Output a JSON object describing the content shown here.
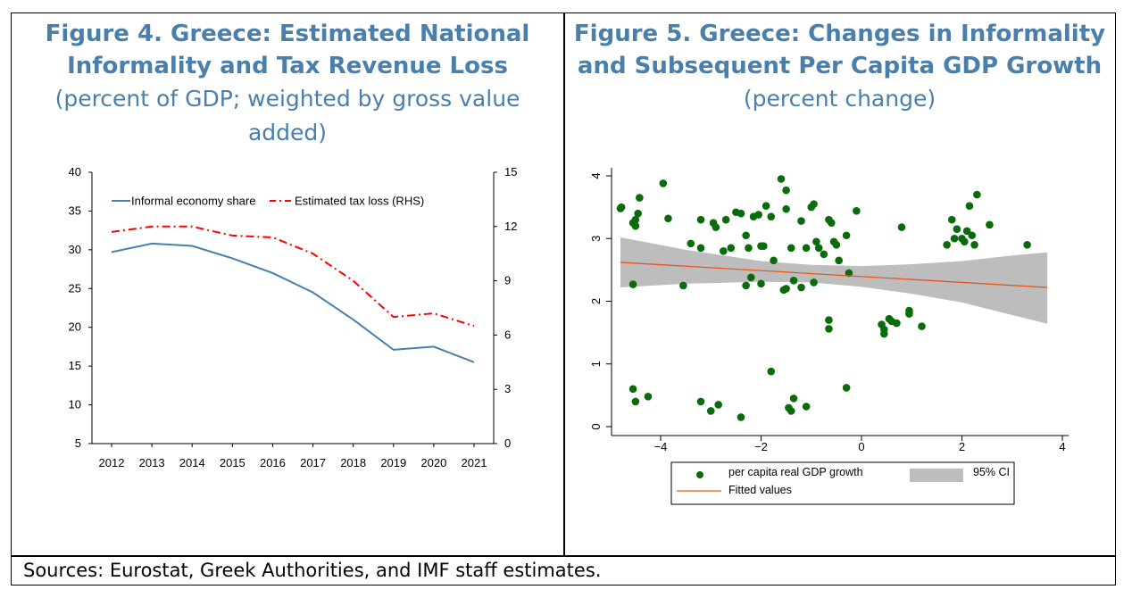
{
  "figure4": {
    "title": "Figure 4. Greece: Estimated National Informality and Tax Revenue Loss",
    "subtitle": "(percent of GDP; weighted by gross value added)"
  },
  "figure5": {
    "title": "Figure 5. Greece: Changes in Informality and Subsequent Per Capita GDP Growth",
    "subtitle": "(percent change)"
  },
  "sources": "Sources: Eurostat, Greek Authorities, and IMF staff estimates.",
  "colors": {
    "title": "#4a7fab",
    "informal": "#4a7fab",
    "taxloss": "#ff0000",
    "scatter": "#0a6b0a",
    "fit": "#e8561a",
    "ci": "#bdbdbd"
  },
  "chart_data": [
    {
      "type": "line",
      "categories": [
        "2012",
        "2013",
        "2014",
        "2015",
        "2016",
        "2017",
        "2018",
        "2019",
        "2020",
        "2021"
      ],
      "series": [
        {
          "name": "Informal economy share",
          "axis": "left",
          "style": "solid",
          "values": [
            29.7,
            30.8,
            30.5,
            28.9,
            27.0,
            24.5,
            21.0,
            17.1,
            17.5,
            15.5
          ]
        },
        {
          "name": "Estimated tax loss (RHS)",
          "axis": "right",
          "style": "dash-dot",
          "values": [
            11.7,
            12.0,
            12.0,
            11.5,
            11.4,
            10.5,
            9.0,
            7.0,
            7.2,
            6.5
          ]
        }
      ],
      "ylim_left": [
        5,
        40
      ],
      "yticks_left": [
        5,
        10,
        15,
        20,
        25,
        30,
        35,
        40
      ],
      "ylim_right": [
        0,
        15
      ],
      "yticks_right": [
        0,
        3,
        6,
        9,
        12,
        15
      ],
      "legend_position": "top-left",
      "grid": false
    },
    {
      "type": "scatter",
      "xlim": [
        -4.9,
        3.9
      ],
      "ylim": [
        -0.1,
        4.1
      ],
      "xticks": [
        -4,
        -2,
        0,
        2,
        4
      ],
      "yticks": [
        0,
        1,
        2,
        3,
        4
      ],
      "legend": [
        {
          "name": "per capita real GDP growth",
          "kind": "marker"
        },
        {
          "name": "95% CI",
          "kind": "band"
        },
        {
          "name": "Fitted values",
          "kind": "line"
        }
      ],
      "legend_position": "bottom",
      "grid": false,
      "fit": {
        "x": [
          -4.8,
          3.7
        ],
        "y": [
          2.62,
          2.22
        ]
      },
      "ci": {
        "x": [
          -4.8,
          -3.5,
          -2.0,
          -1.0,
          0.0,
          1.0,
          2.0,
          3.0,
          3.7
        ],
        "upper": [
          3.02,
          2.82,
          2.64,
          2.58,
          2.56,
          2.59,
          2.64,
          2.73,
          2.78
        ],
        "lower": [
          2.22,
          2.28,
          2.31,
          2.3,
          2.23,
          2.12,
          1.98,
          1.78,
          1.64
        ]
      },
      "points": [
        [
          -4.8,
          3.48
        ],
        [
          -4.78,
          3.5
        ],
        [
          -4.55,
          3.25
        ],
        [
          -4.5,
          3.3
        ],
        [
          -4.45,
          3.4
        ],
        [
          -4.42,
          3.65
        ],
        [
          -4.5,
          3.2
        ],
        [
          -3.95,
          3.88
        ],
        [
          -3.85,
          3.32
        ],
        [
          -4.55,
          2.27
        ],
        [
          -3.55,
          2.25
        ],
        [
          -3.4,
          2.92
        ],
        [
          -3.2,
          3.3
        ],
        [
          -2.95,
          3.25
        ],
        [
          -2.9,
          3.18
        ],
        [
          -2.75,
          2.8
        ],
        [
          -2.7,
          3.3
        ],
        [
          -2.5,
          3.42
        ],
        [
          -2.4,
          3.4
        ],
        [
          -2.3,
          3.05
        ],
        [
          -2.25,
          2.85
        ],
        [
          -2.15,
          3.35
        ],
        [
          -2.05,
          3.38
        ],
        [
          -2.0,
          2.88
        ],
        [
          -1.95,
          2.88
        ],
        [
          -1.9,
          3.52
        ],
        [
          -1.8,
          3.35
        ],
        [
          -2.0,
          2.28
        ],
        [
          -1.6,
          3.95
        ],
        [
          -1.5,
          3.77
        ],
        [
          -1.5,
          3.47
        ],
        [
          -1.4,
          2.85
        ],
        [
          -1.55,
          2.18
        ],
        [
          -1.5,
          2.2
        ],
        [
          -1.2,
          3.28
        ],
        [
          -1.1,
          2.85
        ],
        [
          -1.0,
          3.5
        ],
        [
          -0.95,
          3.55
        ],
        [
          -0.9,
          2.95
        ],
        [
          -0.85,
          2.85
        ],
        [
          -0.75,
          2.75
        ],
        [
          -0.65,
          3.3
        ],
        [
          -0.6,
          3.25
        ],
        [
          -0.55,
          2.95
        ],
        [
          -0.5,
          2.9
        ],
        [
          -0.45,
          2.65
        ],
        [
          -0.3,
          3.05
        ],
        [
          -0.1,
          3.44
        ],
        [
          -1.35,
          2.33
        ],
        [
          -1.2,
          2.22
        ],
        [
          -0.95,
          2.3
        ],
        [
          -2.3,
          2.25
        ],
        [
          -2.2,
          2.38
        ],
        [
          -0.65,
          1.7
        ],
        [
          -0.65,
          1.56
        ],
        [
          -0.3,
          0.62
        ],
        [
          -1.8,
          0.88
        ],
        [
          -1.35,
          0.45
        ],
        [
          -1.45,
          0.3
        ],
        [
          -1.4,
          0.25
        ],
        [
          -1.1,
          0.32
        ],
        [
          -2.4,
          0.15
        ],
        [
          -2.85,
          0.35
        ],
        [
          -3.0,
          0.25
        ],
        [
          -3.2,
          0.4
        ],
        [
          -4.25,
          0.48
        ],
        [
          -4.55,
          0.6
        ],
        [
          -4.5,
          0.4
        ],
        [
          0.4,
          1.63
        ],
        [
          0.55,
          1.72
        ],
        [
          0.6,
          1.68
        ],
        [
          0.7,
          1.65
        ],
        [
          0.45,
          1.55
        ],
        [
          0.45,
          1.48
        ],
        [
          0.95,
          1.85
        ],
        [
          0.95,
          1.8
        ],
        [
          1.2,
          1.6
        ],
        [
          0.8,
          3.18
        ],
        [
          1.7,
          2.9
        ],
        [
          1.8,
          3.3
        ],
        [
          1.85,
          3.0
        ],
        [
          1.9,
          3.15
        ],
        [
          2.0,
          3.0
        ],
        [
          2.05,
          2.95
        ],
        [
          2.1,
          3.12
        ],
        [
          2.15,
          3.52
        ],
        [
          2.2,
          3.05
        ],
        [
          2.25,
          2.9
        ],
        [
          2.3,
          3.7
        ],
        [
          2.55,
          3.22
        ],
        [
          3.3,
          2.9
        ],
        [
          -1.75,
          2.65
        ],
        [
          -3.2,
          2.85
        ],
        [
          -2.6,
          2.85
        ],
        [
          -0.25,
          2.45
        ]
      ]
    }
  ]
}
